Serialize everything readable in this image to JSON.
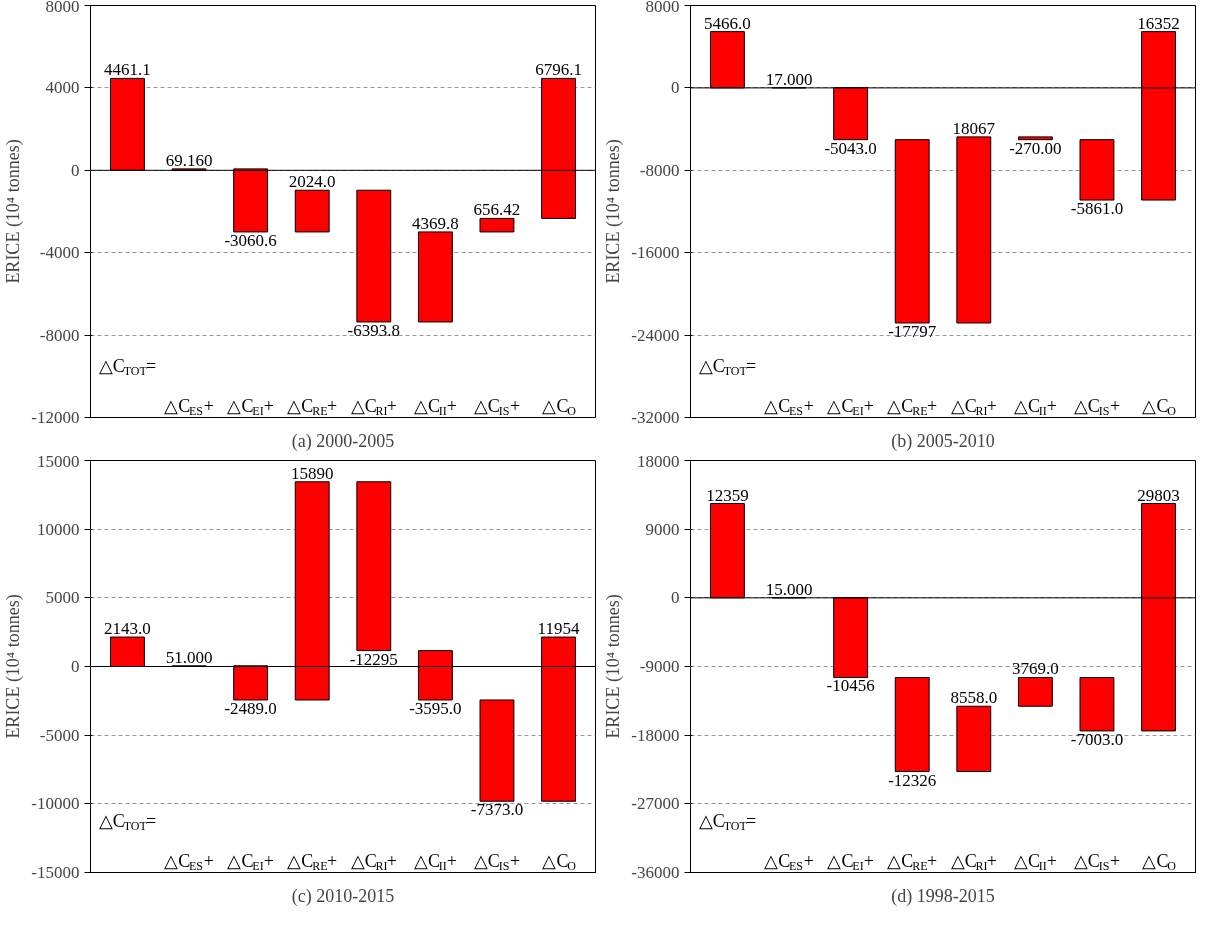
{
  "chart_data": [
    {
      "type": "bar",
      "title": "(a) 2000-2005",
      "ylabel": "ERICE (10⁴ tonnes)",
      "categories": [
        "△C$_{TOT}$=",
        "△C$_{ES}$+",
        "△C$_{EI}$+",
        "△C$_{RE}$+",
        "△C$_{RI}$+",
        "△C$_{II}$+",
        "△C$_{IS}$+",
        "△C$_{O}$"
      ],
      "values": [
        4461.1,
        69.16,
        -3060.6,
        2024.0,
        -6393.8,
        4369.8,
        656.42,
        6796.1
      ],
      "base": [
        0,
        0,
        69.16,
        -2991.44,
        -967.44,
        -7361.24,
        -2991.44,
        -2335.02
      ],
      "value_labels": [
        "4461.1",
        "69.160",
        "-3060.6",
        "2024.0",
        "-6393.8",
        "4369.8",
        "656.42",
        "6796.1"
      ],
      "color": "#ff0000",
      "ylim": [
        -12000,
        8000
      ],
      "yticks": [
        -12000,
        -8000,
        -4000,
        0,
        4000,
        8000
      ],
      "grid": "y",
      "ref_lines": [
        {
          "axis": "y",
          "value": 0,
          "color": "#000000"
        }
      ]
    },
    {
      "type": "bar",
      "title": "(b) 2005-2010",
      "ylabel": "ERICE (10⁴ tonnes)",
      "categories": [
        "△C$_{TOT}$=",
        "△C$_{ES}$+",
        "△C$_{EI}$+",
        "△C$_{RE}$+",
        "△C$_{RI}$+",
        "△C$_{II}$+",
        "△C$_{IS}$+",
        "△C$_{O}$"
      ],
      "values": [
        5466.0,
        17.0,
        -5043.0,
        -17797,
        18067,
        -270.0,
        -5861.0,
        16352
      ],
      "base": [
        0,
        0,
        17,
        -5026,
        -22823,
        -4756,
        -5026,
        -10887
      ],
      "value_labels": [
        "5466.0",
        "17.000",
        "-5043.0",
        "-17797",
        "18067",
        "-270.00",
        "-5861.0",
        "16352"
      ],
      "color": "#ff0000",
      "ylim": [
        -32000,
        8000
      ],
      "yticks": [
        -32000,
        -24000,
        -16000,
        -8000,
        0,
        8000
      ],
      "grid": "y",
      "ref_lines": [
        {
          "axis": "y",
          "value": 0,
          "color": "#000000"
        }
      ]
    },
    {
      "type": "bar",
      "title": "(c) 2010-2015",
      "ylabel": "ERICE (10⁴ tonnes)",
      "categories": [
        "△C$_{TOT}$=",
        "△C$_{ES}$+",
        "△C$_{EI}$+",
        "△C$_{RE}$+",
        "△C$_{RI}$+",
        "△C$_{II}$+",
        "△C$_{IS}$+",
        "△C$_{O}$"
      ],
      "values": [
        2143.0,
        51.0,
        -2489.0,
        15890,
        -12295,
        -3595.0,
        -7373.0,
        11954
      ],
      "base": [
        0,
        0,
        51,
        -2438,
        13452,
        1157,
        -2438,
        -9811
      ],
      "value_labels": [
        "2143.0",
        "51.000",
        "-2489.0",
        "15890",
        "-12295",
        "-3595.0",
        "-7373.0",
        "11954"
      ],
      "color": "#ff0000",
      "ylim": [
        -15000,
        15000
      ],
      "yticks": [
        -15000,
        -10000,
        -5000,
        0,
        5000,
        10000,
        15000
      ],
      "grid": "y",
      "ref_lines": [
        {
          "axis": "y",
          "value": 0,
          "color": "#000000"
        }
      ]
    },
    {
      "type": "bar",
      "title": "(d) 1998-2015",
      "ylabel": "ERICE (10⁴ tonnes)",
      "categories": [
        "△C$_{TOT}$=",
        "△C$_{ES}$+",
        "△C$_{EI}$+",
        "△C$_{RE}$+",
        "△C$_{RI}$+",
        "△C$_{II}$+",
        "△C$_{IS}$+",
        "△C$_{O}$"
      ],
      "values": [
        12359,
        15.0,
        -10456,
        -12326,
        8558.0,
        3769.0,
        -7003.0,
        29803
      ],
      "base": [
        0,
        0,
        15,
        -10441,
        -22767,
        -14209,
        -10440,
        -17443
      ],
      "value_labels": [
        "12359",
        "15.000",
        "-10456",
        "-12326",
        "8558.0",
        "3769.0",
        "-7003.0",
        "29803"
      ],
      "color": "#ff0000",
      "ylim": [
        -36000,
        18000
      ],
      "yticks": [
        -36000,
        -27000,
        -18000,
        -9000,
        0,
        9000,
        18000
      ],
      "grid": "y",
      "ref_lines": [
        {
          "axis": "y",
          "value": 0,
          "color": "#000000"
        }
      ]
    }
  ]
}
